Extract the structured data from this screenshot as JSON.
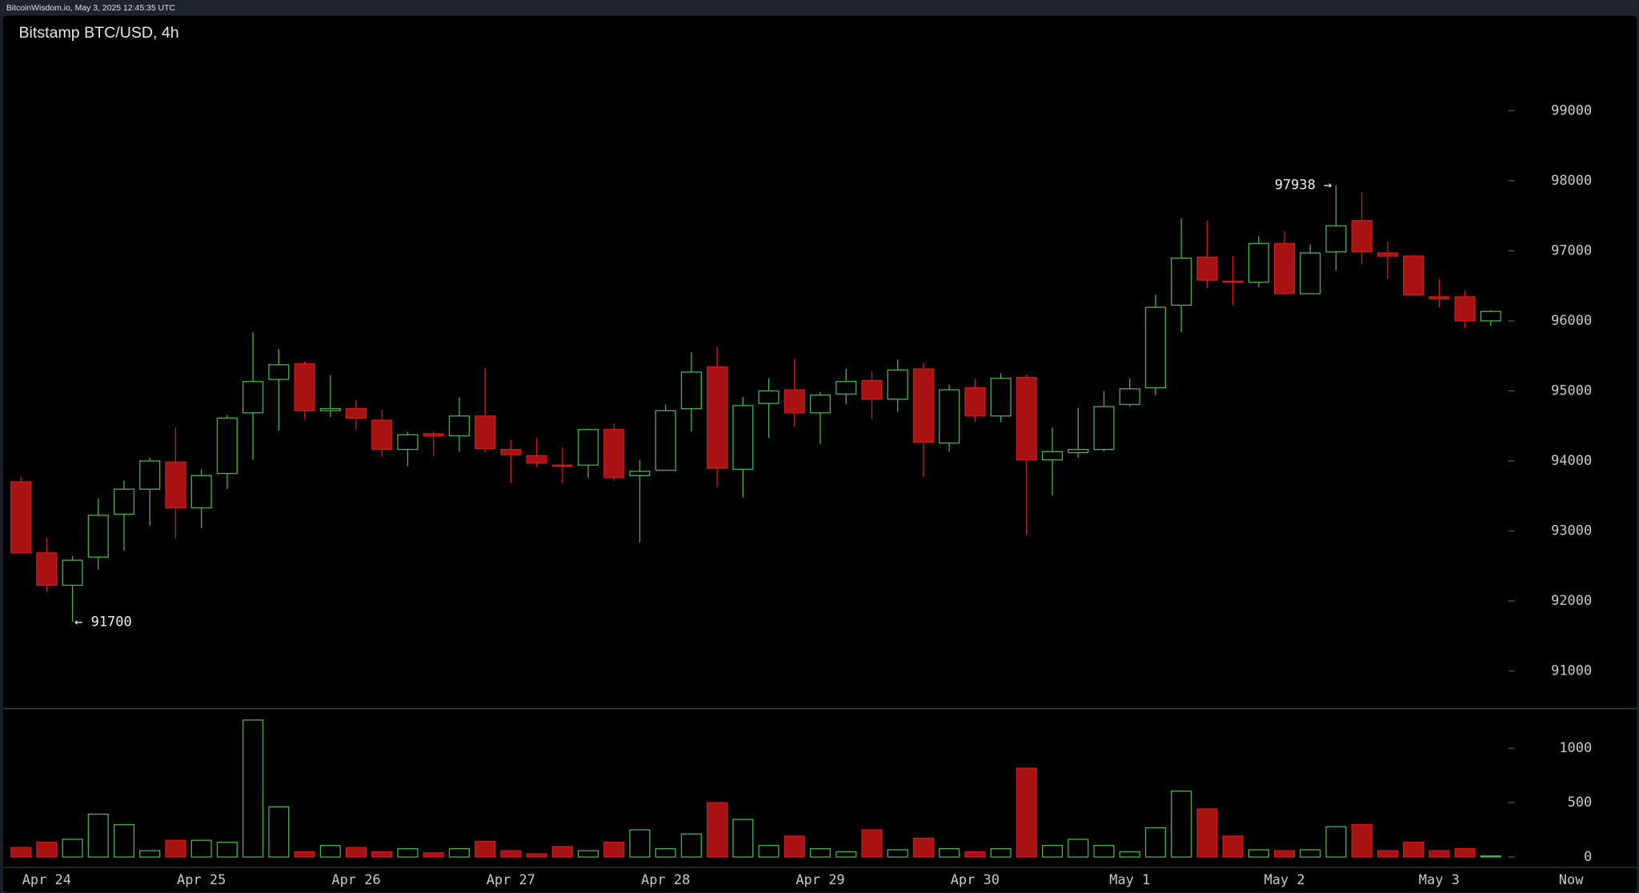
{
  "header": {
    "text": "BitcoinWisdom.io, May 3, 2025 12:45:35 UTC"
  },
  "chart_data": {
    "type": "candlestick",
    "title": "Bitstamp BTC/USD, 4h",
    "categories": [
      null,
      "Apr 24",
      null,
      null,
      null,
      null,
      null,
      "Apr 25",
      null,
      null,
      null,
      null,
      null,
      "Apr 26",
      null,
      null,
      null,
      null,
      null,
      "Apr 27",
      null,
      null,
      null,
      null,
      null,
      "Apr 28",
      null,
      null,
      null,
      null,
      null,
      "Apr 29",
      null,
      null,
      null,
      null,
      null,
      "Apr 30",
      null,
      null,
      null,
      null,
      null,
      "May 1",
      null,
      null,
      null,
      null,
      null,
      "May 2",
      null,
      null,
      null,
      null,
      null,
      "May 3",
      null,
      null
    ],
    "open": [
      93702,
      92687,
      92224,
      92627,
      93239,
      93597,
      93985,
      93329,
      93821,
      94687,
      95164,
      95388,
      94717,
      94746,
      94582,
      94164,
      94388,
      94358,
      94642,
      94164,
      94075,
      93940,
      93940,
      94448,
      93791,
      93866,
      94746,
      95343,
      93881,
      94821,
      95015,
      94687,
      94955,
      95149,
      94881,
      95313,
      94254,
      95045,
      94642,
      95194,
      94015,
      94119,
      94164,
      94806,
      95045,
      96224,
      96910,
      96567,
      96552,
      97105,
      96388,
      96985,
      97433,
      96970,
      96925,
      96343,
      96343,
      96000
    ],
    "high": [
      93776,
      92896,
      92642,
      93463,
      93717,
      94045,
      94478,
      93881,
      94657,
      95836,
      95597,
      95418,
      95224,
      94866,
      94731,
      94418,
      94418,
      94911,
      95328,
      94299,
      94328,
      94194,
      94463,
      94537,
      94015,
      94806,
      95552,
      95627,
      94911,
      95179,
      95463,
      94985,
      95313,
      95284,
      95448,
      95403,
      95090,
      95164,
      95254,
      95239,
      94478,
      94761,
      95000,
      95179,
      96373,
      97463,
      97433,
      96925,
      97209,
      97284,
      97090,
      97938,
      97836,
      97134,
      96940,
      96597,
      96433,
      96149
    ],
    "low": [
      92687,
      92134,
      91700,
      92448,
      92717,
      93075,
      92896,
      93045,
      93597,
      94015,
      94433,
      94597,
      94627,
      94448,
      94060,
      93925,
      94075,
      94134,
      94119,
      93687,
      93910,
      93687,
      93761,
      93716,
      92836,
      93866,
      94418,
      93627,
      93478,
      94328,
      94493,
      94239,
      94806,
      94597,
      94702,
      93776,
      94134,
      94552,
      94552,
      92940,
      93508,
      94045,
      94134,
      94776,
      94940,
      95836,
      96463,
      96224,
      96478,
      96373,
      96388,
      96716,
      96821,
      96597,
      96358,
      96194,
      95896,
      95925
    ],
    "close": [
      92687,
      92224,
      92582,
      93224,
      93597,
      94000,
      93329,
      93791,
      94612,
      95134,
      95373,
      94717,
      94746,
      94612,
      94164,
      94373,
      94358,
      94642,
      94179,
      94090,
      93970,
      93925,
      94448,
      93761,
      93851,
      94717,
      95269,
      93896,
      94791,
      95000,
      94687,
      94940,
      95134,
      94881,
      95298,
      94269,
      95015,
      94642,
      95179,
      94015,
      94134,
      94164,
      94776,
      95030,
      96194,
      96896,
      96582,
      96552,
      97105,
      96388,
      96970,
      97358,
      96985,
      96925,
      96373,
      96313,
      96000,
      96134
    ],
    "volume": [
      87,
      135,
      163,
      394,
      298,
      58,
      154,
      154,
      135,
      1260,
      462,
      48,
      106,
      87,
      48,
      77,
      38,
      77,
      144,
      58,
      29,
      96,
      58,
      135,
      250,
      77,
      212,
      500,
      346,
      106,
      192,
      77,
      48,
      250,
      67,
      173,
      77,
      48,
      77,
      817,
      106,
      163,
      106,
      48,
      269,
      606,
      442,
      192,
      67,
      58,
      67,
      279,
      298,
      58,
      135,
      58,
      77,
      10
    ],
    "ylim": [
      90463,
      100358
    ],
    "yticks": [
      91000,
      92000,
      93000,
      94000,
      95000,
      96000,
      97000,
      98000,
      99000
    ],
    "volume_ylim": [
      -96,
      1365
    ],
    "volume_yticks": [
      0,
      500,
      1000
    ],
    "up_color": "#4caf50",
    "down_color": "#a81212",
    "annotations": [
      "97938 →",
      "← 91700"
    ],
    "end_label": "Now"
  }
}
